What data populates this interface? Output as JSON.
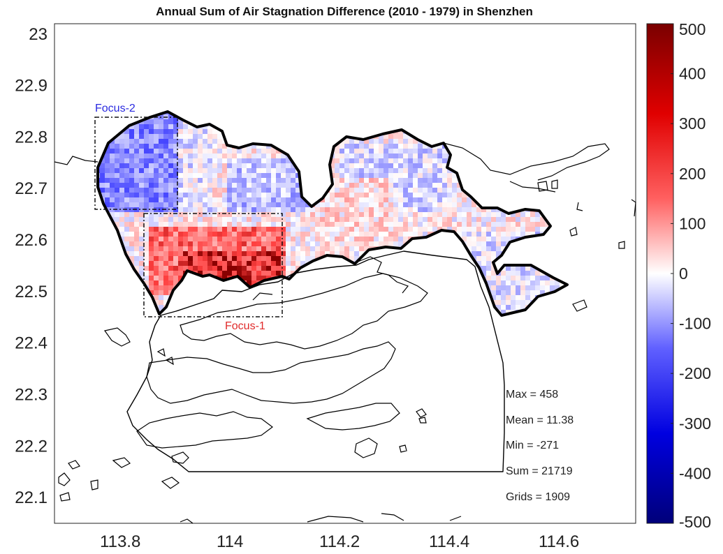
{
  "title": "Annual Sum of Air Stagnation Difference (2010 - 1979) in Shenzhen",
  "map": {
    "x_ticks": [
      "113.8",
      "114",
      "114.2",
      "114.4",
      "114.6"
    ],
    "x_tick_values": [
      113.8,
      114.0,
      114.2,
      114.4,
      114.6
    ],
    "y_ticks": [
      "23",
      "22.9",
      "22.8",
      "22.7",
      "22.6",
      "22.5",
      "22.4",
      "22.3",
      "22.2",
      "22.1"
    ],
    "y_tick_values": [
      23.0,
      22.9,
      22.8,
      22.7,
      22.6,
      22.5,
      22.4,
      22.3,
      22.2,
      22.1
    ],
    "xlim": [
      113.68,
      114.74
    ],
    "ylim": [
      22.05,
      23.02
    ],
    "colormap": "blue-white-red",
    "color_low": "#00007a",
    "color_high": "#7a0000"
  },
  "colorbar": {
    "ticks": [
      "500",
      "400",
      "300",
      "200",
      "100",
      "0",
      "-100",
      "-200",
      "-300",
      "-400",
      "-500"
    ],
    "tick_values": [
      500,
      400,
      300,
      200,
      100,
      0,
      -100,
      -200,
      -300,
      -400,
      -500
    ],
    "range": [
      -500,
      500
    ]
  },
  "focus_labels": {
    "focus2": "Focus-2",
    "focus1": "Focus-1",
    "focus2_color": "#2a2ae0",
    "focus1_color": "#e02a2a"
  },
  "stats": {
    "max": "Max   = 458",
    "mean": "Mean = 11.38",
    "min": "Min    = -271",
    "sum": "Sum   = 21719",
    "grids": "Grids  = 1909"
  },
  "chart_data": {
    "type": "heatmap",
    "title": "Annual Sum of Air Stagnation Difference (2010 - 1979) in Shenzhen",
    "xlabel": "",
    "ylabel": "",
    "xlim": [
      113.68,
      114.74
    ],
    "ylim": [
      22.05,
      23.02
    ],
    "color_range": [
      -500,
      500
    ],
    "summary": {
      "max": 458,
      "mean": 11.38,
      "min": -271,
      "sum": 21719,
      "grids": 1909
    },
    "regions": [
      {
        "name": "Focus-1",
        "lon": [
          113.86,
          114.1
        ],
        "lat": [
          22.45,
          22.65
        ]
      },
      {
        "name": "Focus-2",
        "lon": [
          113.76,
          113.9
        ],
        "lat": [
          22.66,
          22.84
        ]
      }
    ]
  }
}
